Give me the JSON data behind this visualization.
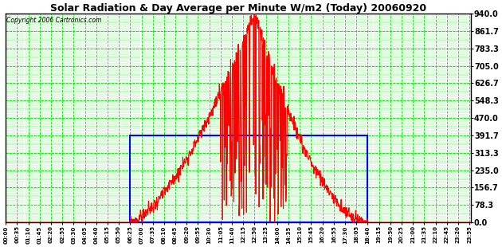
{
  "title": "Solar Radiation & Day Average per Minute W/m2 (Today) 20060920",
  "copyright": "Copyright 2006 Cartronics.com",
  "ylim": [
    0.0,
    940.0
  ],
  "yticks": [
    0.0,
    78.3,
    156.7,
    235.0,
    313.3,
    391.7,
    470.0,
    548.3,
    626.7,
    705.0,
    783.3,
    861.7,
    940.0
  ],
  "bg_color": "#ffffff",
  "plot_bg_color": "#ffffff",
  "grid_color": "#00dd00",
  "red_line_color": "#ff0000",
  "blue_rect_color": "#0000ff",
  "day_avg": 391.7,
  "sunrise_min": 385,
  "sunset_min": 1120,
  "total_minutes": 1440,
  "peak_min": 770,
  "tick_interval": 35
}
